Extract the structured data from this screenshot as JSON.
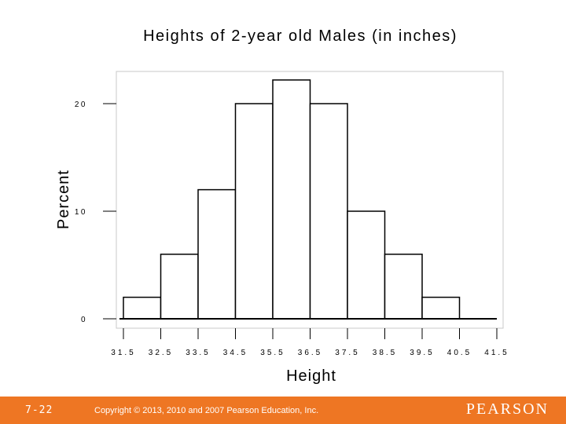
{
  "chart_data": {
    "type": "bar",
    "title": "Heights of 2-year old Males (in inches)",
    "xlabel": "Height",
    "ylabel": "Percent",
    "x_ticks": [
      "31.5",
      "32.5",
      "33.5",
      "34.5",
      "35.5",
      "36.5",
      "37.5",
      "38.5",
      "39.5",
      "40.5",
      "41.5"
    ],
    "y_ticks": [
      "0",
      "10",
      "20"
    ],
    "bins": [
      {
        "from": 31.5,
        "to": 32.5,
        "value": 2
      },
      {
        "from": 32.5,
        "to": 33.5,
        "value": 6
      },
      {
        "from": 33.5,
        "to": 34.5,
        "value": 12
      },
      {
        "from": 34.5,
        "to": 35.5,
        "value": 20
      },
      {
        "from": 35.5,
        "to": 36.5,
        "value": 22.2
      },
      {
        "from": 36.5,
        "to": 37.5,
        "value": 20
      },
      {
        "from": 37.5,
        "to": 38.5,
        "value": 10
      },
      {
        "from": 38.5,
        "to": 39.5,
        "value": 6
      },
      {
        "from": 39.5,
        "to": 40.5,
        "value": 2
      },
      {
        "from": 40.5,
        "to": 41.5,
        "value": 0
      }
    ],
    "xlim": [
      31.5,
      41.5
    ],
    "ylim": [
      0,
      23
    ],
    "grid": false,
    "colors": {
      "bar_fill": "#ffffff",
      "bar_stroke": "#000000"
    }
  },
  "footer": {
    "slide_number": "7-22",
    "copyright": "Copyright © 2013, 2010 and 2007 Pearson Education, Inc.",
    "logo": "PEARSON",
    "color": "#ee7623"
  }
}
